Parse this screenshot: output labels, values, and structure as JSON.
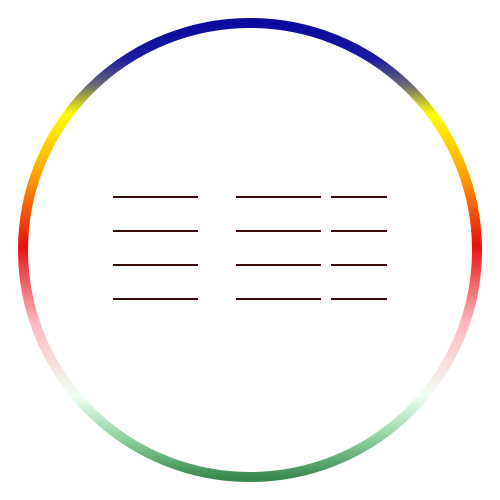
{
  "ring": {
    "colors": {
      "top": "#0a0a9e",
      "upper": "#ffff00",
      "middle_upper": "#ffa500",
      "middle": "#e81010",
      "lower": "#ffb6c1",
      "lower_mid": "#f0fff4",
      "bottom": "#3a8a50"
    }
  },
  "blank_lines": {
    "color": "#3a0a0a",
    "rows": 4,
    "columns": 3
  }
}
